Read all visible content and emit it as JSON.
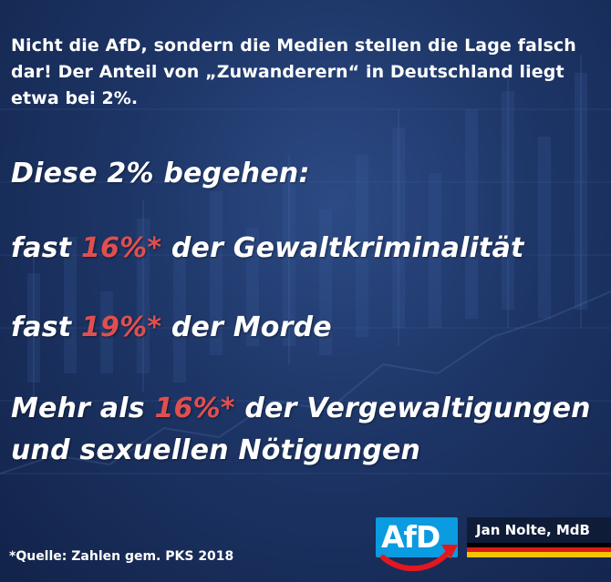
{
  "intro_text": "Nicht die AfD, sondern die Medien stellen die Lage falsch dar! Der Anteil von „Zuwanderern“ in Deutschland liegt etwa bei 2%.",
  "heading": "Diese 2% begehen:",
  "stats": [
    {
      "prefix": "fast ",
      "percent": "16%*",
      "suffix": " der Gewaltkriminalität"
    },
    {
      "prefix": "fast ",
      "percent": "19%*",
      "suffix": " der Morde"
    },
    {
      "prefix": "Mehr als ",
      "percent": "16%*",
      "suffix": " der Vergewaltigungen und sexuellen Nötigungen"
    }
  ],
  "footnote": "*Quelle: Zahlen gem. PKS 2018",
  "logo_text": "AfD",
  "name_label": "Jan Nolte, MdB",
  "colors": {
    "background": "#1d3566",
    "highlight": "#e04f4f",
    "logo_blue": "#0b9be0",
    "logo_swoosh": "#e3181e",
    "name_box": "#0f1c38"
  }
}
